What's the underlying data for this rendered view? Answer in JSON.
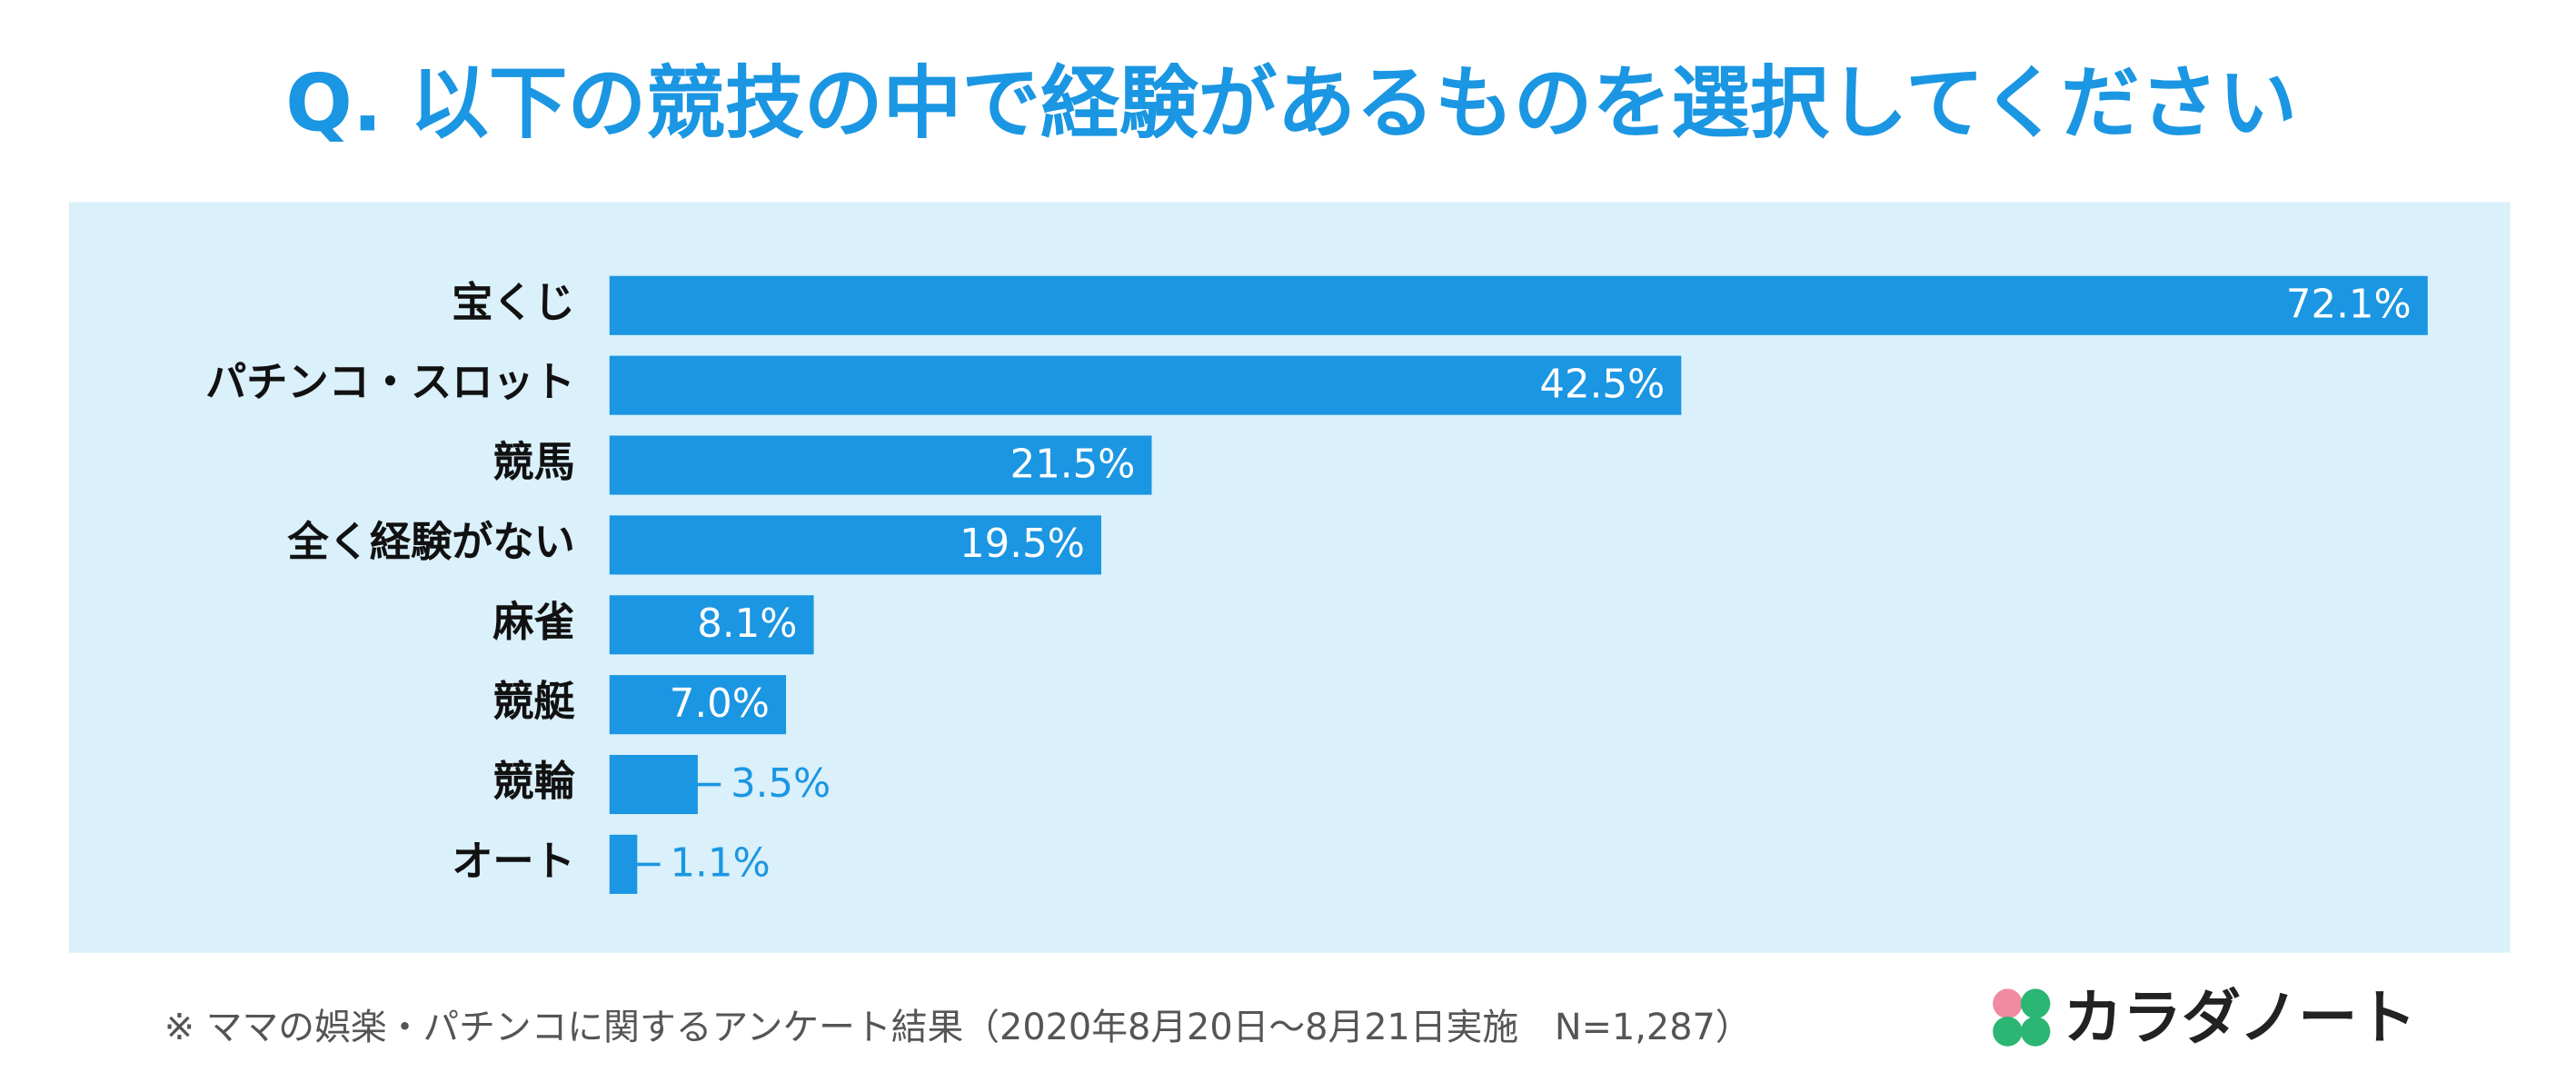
{
  "chart_data": {
    "type": "bar",
    "orientation": "horizontal",
    "title": "Q. 以下の競技の中で経験があるものを選択してください",
    "categories": [
      "宝くじ",
      "パチンコ・スロット",
      "競馬",
      "全く経験がない",
      "麻雀",
      "競艇",
      "競輪",
      "オート"
    ],
    "values": [
      72.1,
      42.5,
      21.5,
      19.5,
      8.1,
      7.0,
      3.5,
      1.1
    ],
    "value_labels": [
      "72.1%",
      "42.5%",
      "21.5%",
      "19.5%",
      "8.1%",
      "7.0%",
      "3.5%",
      "1.1%"
    ],
    "color": "#1b96e2"
  },
  "footnote": "※ ママの娯楽・パチンコに関するアンケート結果（2020年8月20日～8月21日実施　N=1,287）",
  "brand": "カラダノート"
}
